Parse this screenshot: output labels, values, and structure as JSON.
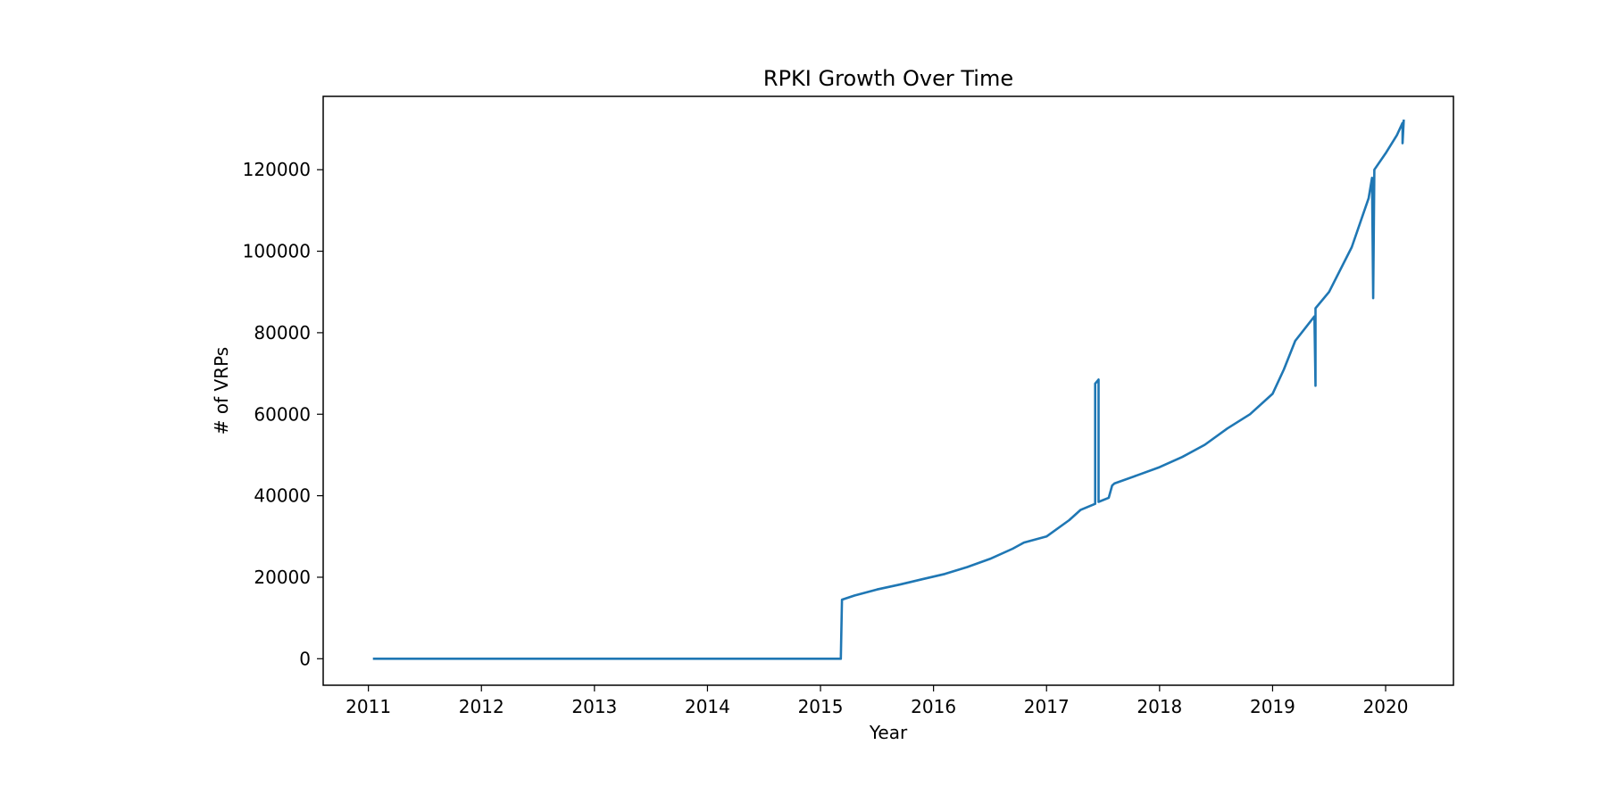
{
  "chart_data": {
    "type": "line",
    "title": "RPKI Growth Over Time",
    "xlabel": "Year",
    "ylabel": "# of VRPs",
    "grid": false,
    "legend": "none",
    "x_unit": "year",
    "xlim": [
      2010.6,
      2020.6
    ],
    "ylim": [
      -6500,
      138000
    ],
    "x_ticks": [
      2011,
      2012,
      2013,
      2014,
      2015,
      2016,
      2017,
      2018,
      2019,
      2020
    ],
    "x_tick_labels": [
      "2011",
      "2012",
      "2013",
      "2014",
      "2015",
      "2016",
      "2017",
      "2018",
      "2019",
      "2020"
    ],
    "y_ticks": [
      0,
      20000,
      40000,
      60000,
      80000,
      100000,
      120000
    ],
    "y_tick_labels": [
      "0",
      "20000",
      "40000",
      "60000",
      "80000",
      "100000",
      "120000"
    ],
    "colors": {
      "line": "#1f77b4"
    },
    "series": [
      {
        "x": [
          2011.05,
          2015.18,
          2015.19,
          2015.3,
          2015.5,
          2015.7,
          2015.9,
          2016.1,
          2016.3,
          2016.5,
          2016.7,
          2016.8,
          2017.0,
          2017.2,
          2017.3,
          2017.43,
          2017.43,
          2017.46,
          2017.46,
          2017.55,
          2017.58,
          2017.6,
          2017.8,
          2018.0,
          2018.2,
          2018.4,
          2018.6,
          2018.8,
          2019.0,
          2019.1,
          2019.2,
          2019.37,
          2019.38,
          2019.38,
          2019.5,
          2019.7,
          2019.85,
          2019.88,
          2019.89,
          2019.9,
          2020.0,
          2020.1,
          2020.15,
          2020.15,
          2020.16
        ],
        "values": [
          0,
          0,
          14500,
          15500,
          17000,
          18200,
          19500,
          20800,
          22500,
          24500,
          27000,
          28500,
          30000,
          34000,
          36500,
          38000,
          67500,
          68500,
          38500,
          39500,
          42500,
          43000,
          45000,
          47000,
          49500,
          52500,
          56500,
          60000,
          65000,
          71000,
          78000,
          84000,
          67000,
          86000,
          90000,
          101000,
          113000,
          118000,
          88500,
          120000,
          124000,
          128500,
          131500,
          126500,
          132000
        ]
      }
    ]
  }
}
